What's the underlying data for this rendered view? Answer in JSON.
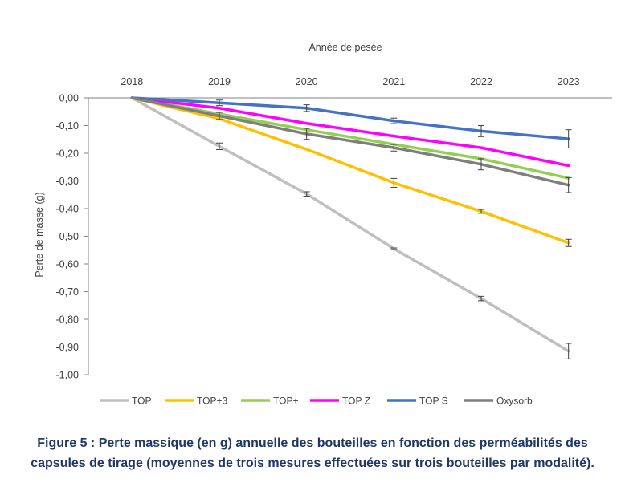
{
  "chart_data": {
    "type": "line",
    "title": "Année de pesée",
    "xlabel": "",
    "ylabel": "Perte de masse (g)",
    "x": [
      "2018",
      "2019",
      "2020",
      "2021",
      "2022",
      "2023"
    ],
    "ylim": [
      -1.0,
      0.0
    ],
    "y_ticks": [
      0.0,
      -0.1,
      -0.2,
      -0.3,
      -0.4,
      -0.5,
      -0.6,
      -0.7,
      -0.8,
      -0.9,
      -1.0
    ],
    "y_tick_labels": [
      "0,00",
      "-0,10",
      "-0,20",
      "-0,30",
      "-0,40",
      "-0,50",
      "-0,60",
      "-0,70",
      "-0,80",
      "-0,90",
      "-1,00"
    ],
    "x_axis_position": "top",
    "grid": false,
    "legend_position": "bottom",
    "series": [
      {
        "name": "TOP",
        "color": "#bfbfbf",
        "values": [
          0.0,
          -0.175,
          -0.347,
          -0.545,
          -0.725,
          -0.915
        ],
        "errors": [
          0.0,
          0.012,
          0.008,
          0.003,
          0.008,
          0.028
        ]
      },
      {
        "name": "TOP+3",
        "color": "#ffc000",
        "values": [
          0.0,
          -0.075,
          -0.186,
          -0.307,
          -0.41,
          -0.524
        ],
        "errors": [
          0.0,
          0.0,
          0.0,
          0.016,
          0.007,
          0.013
        ]
      },
      {
        "name": "TOP+",
        "color": "#92d050",
        "values": [
          0.0,
          -0.058,
          -0.115,
          -0.168,
          -0.22,
          -0.29
        ],
        "errors": [
          0.0,
          0.0,
          0.0,
          0.0,
          0.0,
          0.0
        ]
      },
      {
        "name": "TOP Z",
        "color": "#ff00ff",
        "values": [
          0.0,
          -0.037,
          -0.092,
          -0.138,
          -0.18,
          -0.245
        ],
        "errors": [
          0.0,
          0.0,
          0.0,
          0.0,
          0.0,
          0.0
        ]
      },
      {
        "name": "TOP S",
        "color": "#4472c4",
        "values": [
          0.0,
          -0.018,
          -0.037,
          -0.083,
          -0.12,
          -0.148
        ],
        "errors": [
          0.0,
          0.01,
          0.012,
          0.01,
          0.02,
          0.033
        ]
      },
      {
        "name": "Oxysorb",
        "color": "#7f7f7f",
        "values": [
          0.0,
          -0.065,
          -0.13,
          -0.18,
          -0.24,
          -0.315
        ],
        "errors": [
          0.0,
          0.013,
          0.02,
          0.012,
          0.02,
          0.027
        ]
      }
    ]
  },
  "caption": {
    "prefix": "Figure 5 : ",
    "text": "Perte massique (en g) annuelle des bouteilles en fonction des perméabilités des capsules de tirage (moyennes de trois mesures effectuées sur trois bouteilles par modalité)."
  },
  "colors": {
    "axis": "#808080",
    "text": "#404040",
    "caption": "#1f3864"
  }
}
